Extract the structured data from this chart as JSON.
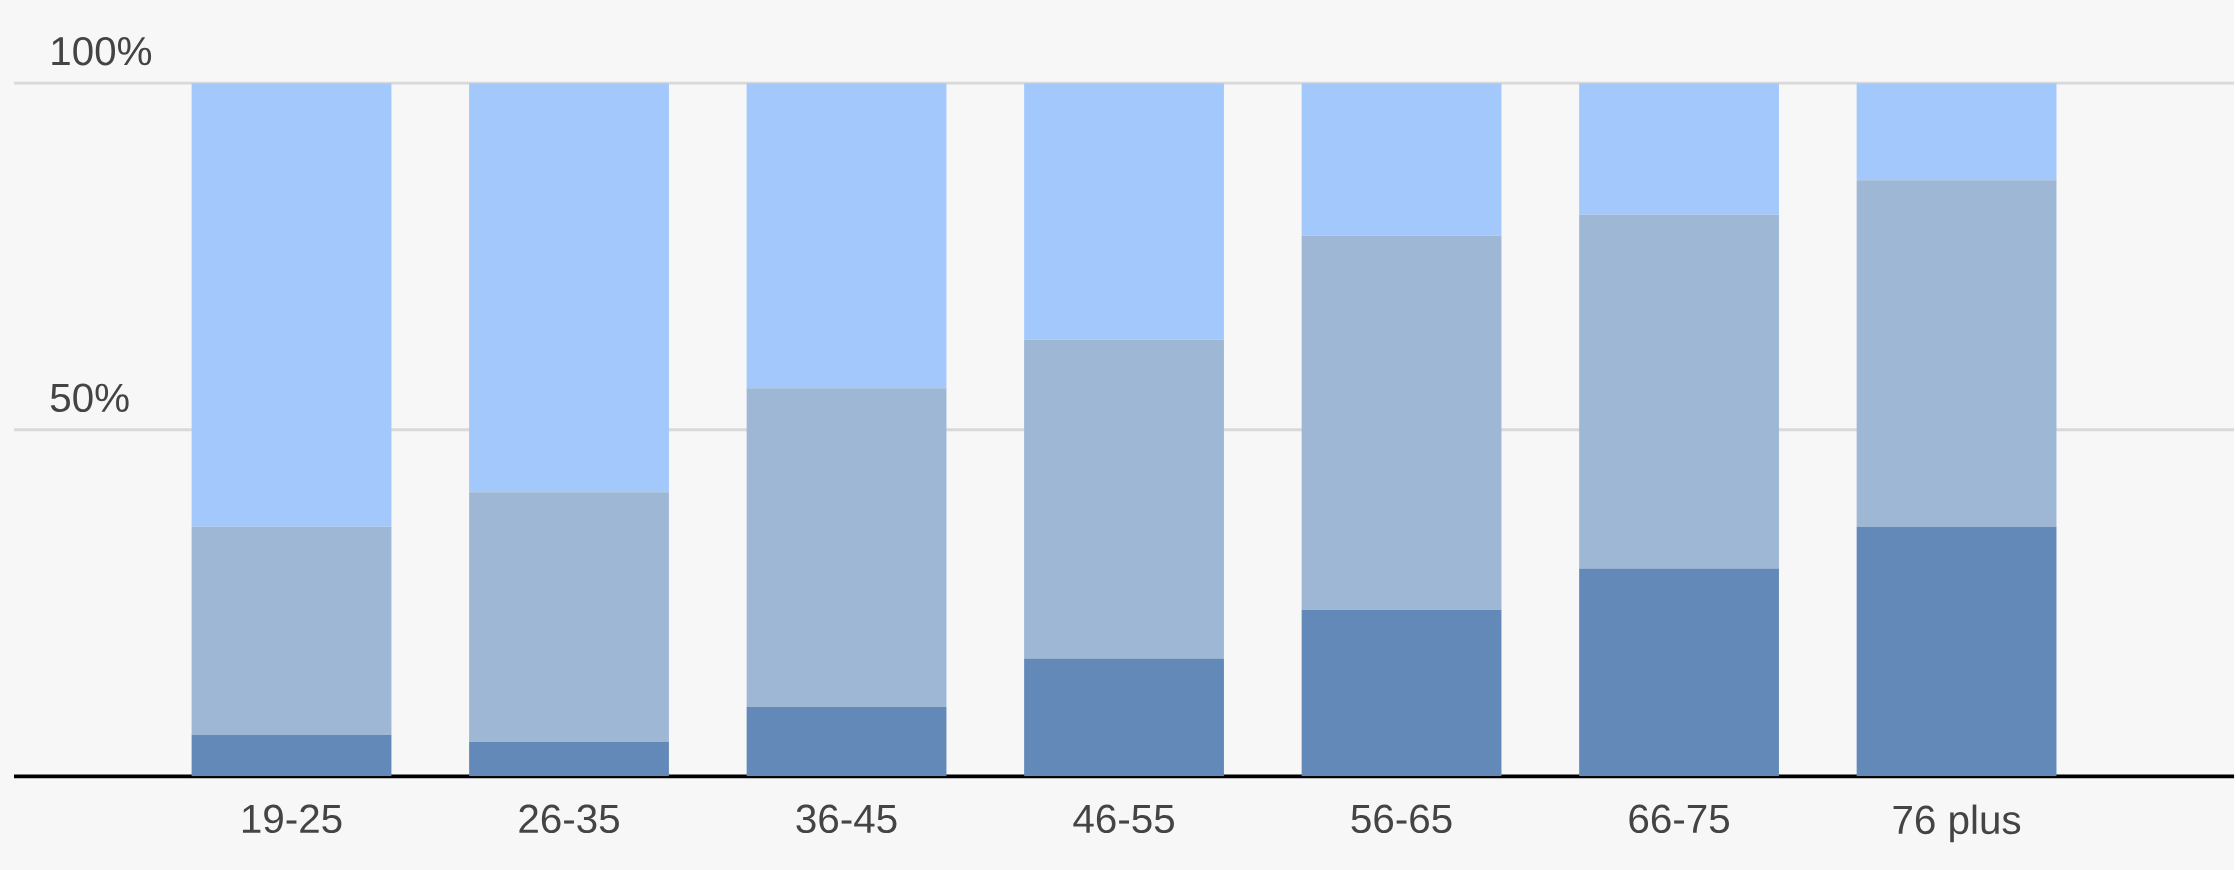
{
  "chart_data": {
    "type": "bar",
    "stacked": true,
    "categories": [
      "19-25",
      "26-35",
      "36-45",
      "46-55",
      "56-65",
      "66-75",
      "76 plus"
    ],
    "series": [
      {
        "color": "#6389b9",
        "values": [
          6,
          5,
          10,
          17,
          24,
          30,
          36
        ]
      },
      {
        "color": "#9db7d5",
        "values": [
          30,
          36,
          46,
          46,
          54,
          51,
          50
        ]
      },
      {
        "color": "#a3c8fc",
        "values": [
          64,
          59,
          44,
          37,
          22,
          19,
          14
        ]
      }
    ],
    "ylim": [
      0,
      112
    ],
    "yticks": [
      {
        "value": 50,
        "label": "50%"
      },
      {
        "value": 100,
        "label": "100%"
      }
    ],
    "grid": "y"
  }
}
